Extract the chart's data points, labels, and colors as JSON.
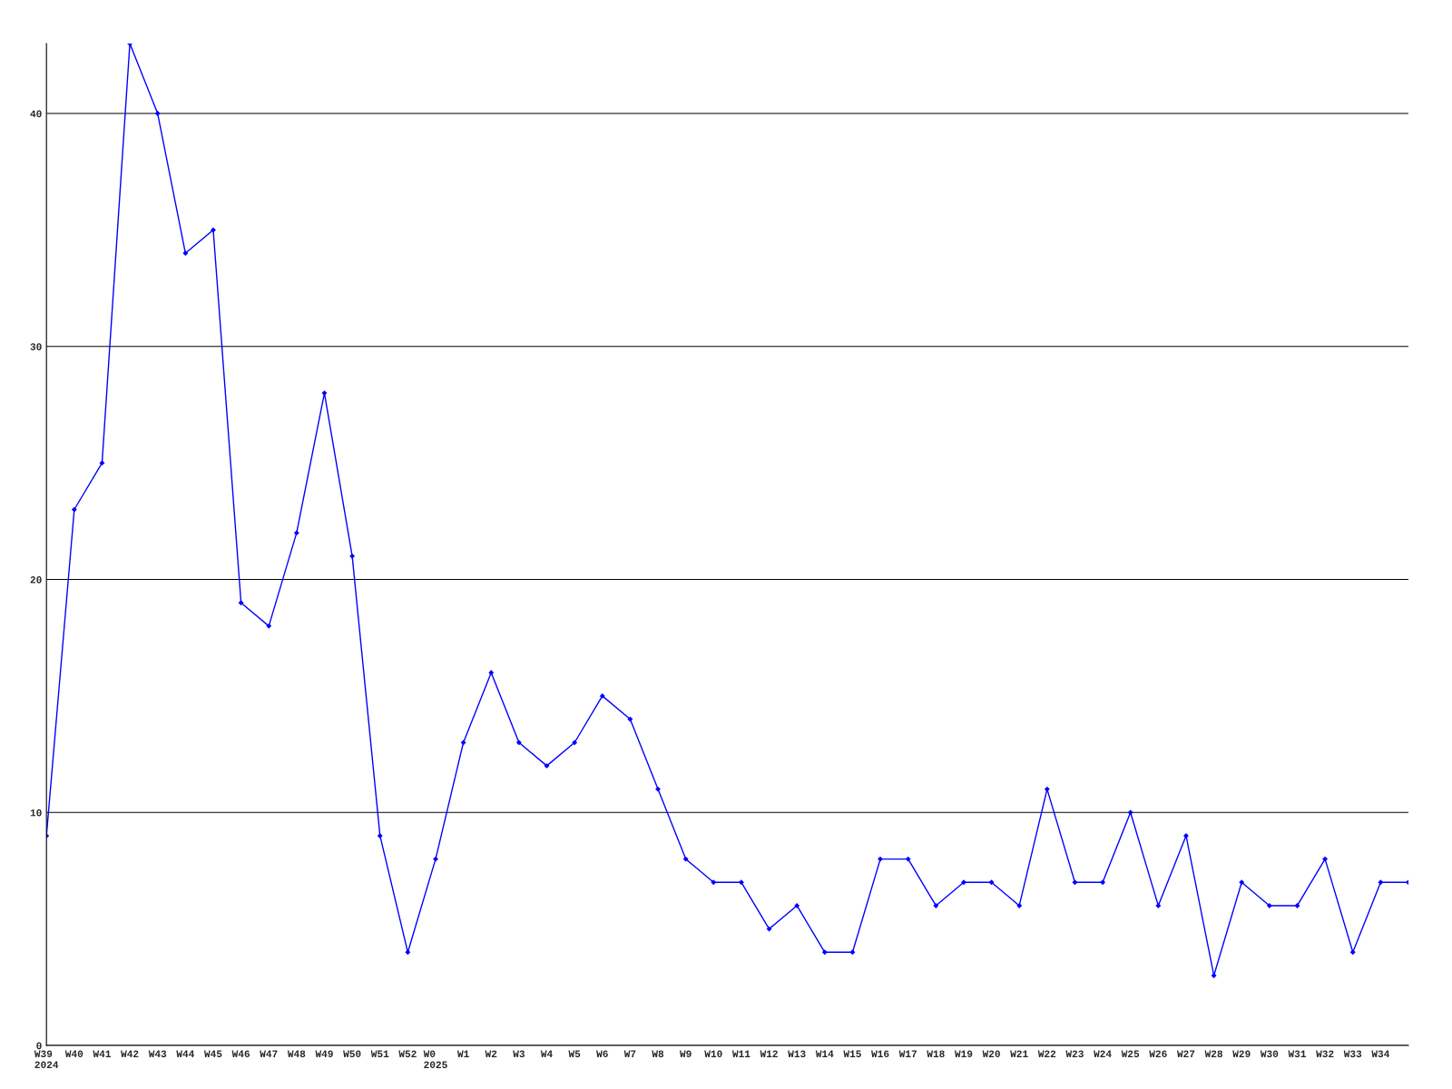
{
  "chart_data": {
    "type": "line",
    "categories": [
      "W39\n2024",
      "W40",
      "W41",
      "W42",
      "W43",
      "W44",
      "W45",
      "W46",
      "W47",
      "W48",
      "W49",
      "W50",
      "W51",
      "W52",
      "W0\n2025",
      "W1",
      "W2",
      "W3",
      "W4",
      "W5",
      "W6",
      "W7",
      "W8",
      "W9",
      "W10",
      "W11",
      "W12",
      "W13",
      "W14",
      "W15",
      "W16",
      "W17",
      "W18",
      "W19",
      "W20",
      "W21",
      "W22",
      "W23",
      "W24",
      "W25",
      "W26",
      "W27",
      "W28",
      "W29",
      "W30",
      "W31",
      "W32",
      "W33",
      "W34",
      null
    ],
    "series": [
      {
        "color": "#0000ff",
        "values": [
          9,
          23,
          25,
          43,
          40,
          34,
          35,
          19,
          18,
          22,
          28,
          21,
          9,
          4,
          8,
          13,
          16,
          13,
          12,
          13,
          15,
          14,
          11,
          8,
          7,
          7,
          5,
          6,
          4,
          4,
          8,
          8,
          6,
          7,
          7,
          6,
          11,
          7,
          7,
          10,
          6,
          9,
          3,
          7,
          6,
          6,
          8,
          4,
          7,
          7
        ]
      }
    ],
    "ylim": [
      0,
      43
    ],
    "yticks": [
      0,
      10,
      20,
      30,
      40
    ],
    "grid": "y",
    "marker": "diamond",
    "line_style": "solid"
  }
}
